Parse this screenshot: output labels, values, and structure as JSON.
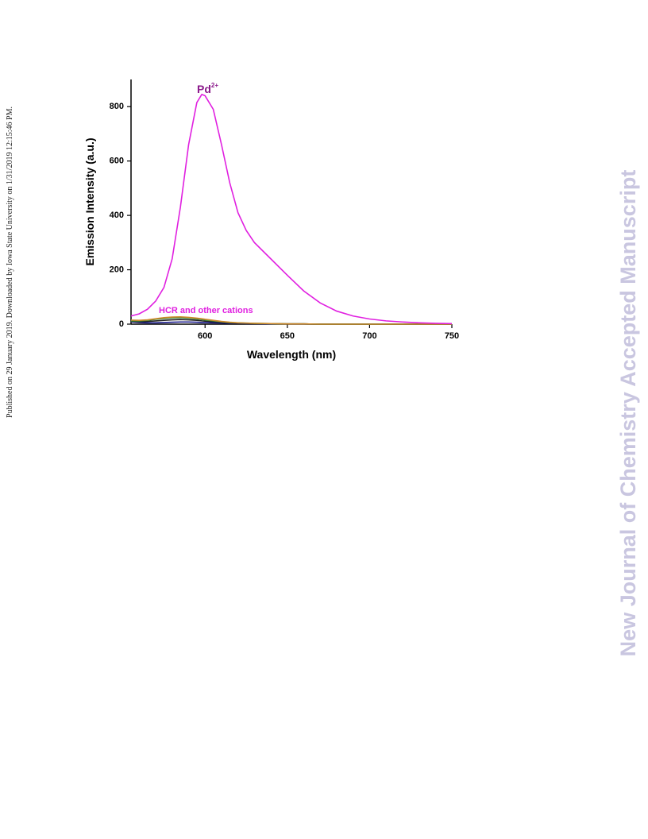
{
  "sidebar": "Published on 29 January 2019. Downloaded by Iowa State University on 1/31/2019 12:15:46 PM.",
  "watermark": "New Journal of Chemistry Accepted Manuscript",
  "chart_data": {
    "type": "line",
    "xlabel": "Wavelength (nm)",
    "ylabel": "Emission Intensity (a.u.)",
    "xlim": [
      555,
      750
    ],
    "ylim": [
      0,
      900
    ],
    "xticks": [
      600,
      650,
      700,
      750
    ],
    "yticks": [
      0,
      200,
      400,
      600,
      800
    ],
    "annotations": [
      {
        "text": "Pd",
        "sup": "2+",
        "color": "#8b1a8b"
      },
      {
        "text": "HCR and other cations",
        "color": "#e020e0"
      }
    ],
    "x": [
      555,
      560,
      565,
      570,
      575,
      580,
      585,
      590,
      595,
      598,
      600,
      605,
      610,
      615,
      620,
      625,
      630,
      640,
      650,
      660,
      670,
      680,
      690,
      700,
      710,
      720,
      730,
      740,
      750
    ],
    "series": [
      {
        "color": "#e020e0",
        "values": [
          30,
          38,
          55,
          85,
          135,
          240,
          430,
          660,
          815,
          845,
          840,
          790,
          660,
          520,
          410,
          345,
          300,
          240,
          180,
          122,
          78,
          48,
          30,
          19,
          12,
          8,
          5,
          3,
          2
        ]
      },
      {
        "color": "#d08a2a",
        "values": [
          15,
          14,
          16,
          20,
          24,
          26,
          27,
          25,
          22,
          20,
          18,
          14,
          10,
          7,
          5,
          4,
          3,
          2,
          1,
          1,
          0,
          0,
          0,
          0,
          0,
          0,
          0,
          0,
          0
        ]
      },
      {
        "color": "#3a8a3a",
        "values": [
          12,
          12,
          14,
          18,
          21,
          23,
          24,
          22,
          19,
          17,
          15,
          12,
          9,
          6,
          5,
          4,
          3,
          2,
          1,
          1,
          0,
          0,
          0,
          0,
          0,
          0,
          0,
          0,
          0
        ]
      },
      {
        "color": "#222222",
        "values": [
          10,
          9,
          10,
          12,
          14,
          16,
          17,
          16,
          14,
          12,
          11,
          9,
          7,
          5,
          4,
          3,
          2,
          2,
          1,
          1,
          0,
          0,
          0,
          0,
          0,
          0,
          0,
          0,
          0
        ]
      },
      {
        "color": "#1a1a8a",
        "values": [
          8,
          6,
          5,
          5,
          6,
          7,
          8,
          8,
          7,
          6,
          6,
          5,
          4,
          3,
          3,
          2,
          2,
          1,
          1,
          1,
          0,
          0,
          0,
          0,
          0,
          0,
          0,
          0,
          0
        ]
      }
    ]
  }
}
